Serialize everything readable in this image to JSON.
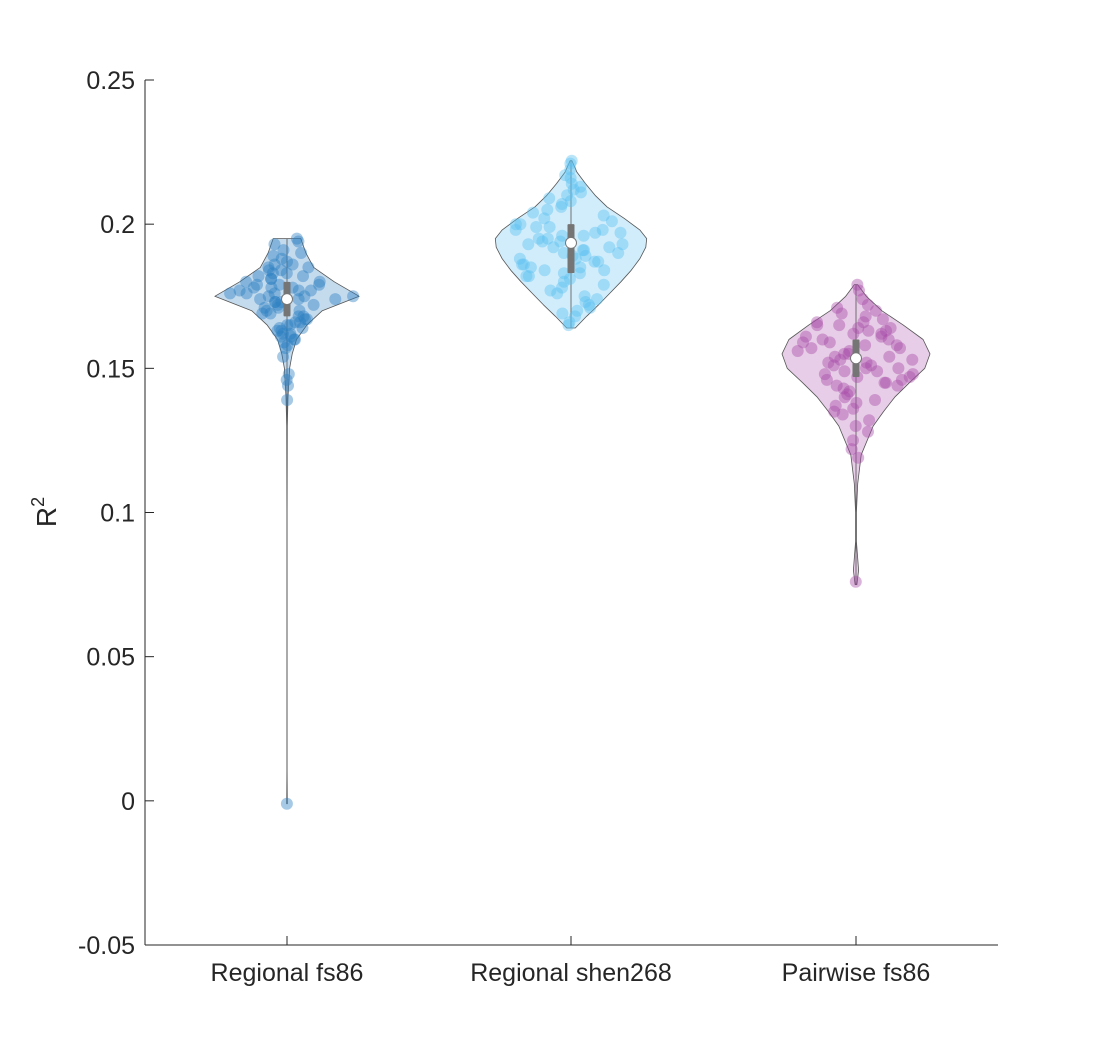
{
  "chart_data": {
    "type": "violin",
    "ylabel": "R",
    "ylabel_superscript": "2",
    "ylim": [
      -0.05,
      0.25
    ],
    "yticks": [
      {
        "value": -0.05,
        "label": "-0.05"
      },
      {
        "value": 0,
        "label": "0"
      },
      {
        "value": 0.05,
        "label": "0.05"
      },
      {
        "value": 0.1,
        "label": "0.1"
      },
      {
        "value": 0.15,
        "label": "0.15"
      },
      {
        "value": 0.2,
        "label": "0.2"
      },
      {
        "value": 0.25,
        "label": "0.25"
      }
    ],
    "categories": [
      "Regional fs86",
      "Regional shen268",
      "Pairwise fs86"
    ],
    "grid": false,
    "series": [
      {
        "category": "Regional fs86",
        "color": "#2a7fc1",
        "median": 0.174,
        "q1": 0.168,
        "q3": 0.18,
        "min": -0.001,
        "max": 0.195,
        "density": [
          [
            -0.001,
            0.004
          ],
          [
            0.01,
            0.001
          ],
          [
            0.05,
            0.001
          ],
          [
            0.1,
            0.001
          ],
          [
            0.13,
            0.004
          ],
          [
            0.14,
            0.012
          ],
          [
            0.15,
            0.03
          ],
          [
            0.155,
            0.06
          ],
          [
            0.16,
            0.11
          ],
          [
            0.165,
            0.23
          ],
          [
            0.17,
            0.41
          ],
          [
            0.175,
            0.84
          ],
          [
            0.18,
            0.55
          ],
          [
            0.185,
            0.31
          ],
          [
            0.19,
            0.22
          ],
          [
            0.195,
            0.16
          ]
        ],
        "points": [
          0.195,
          0.194,
          0.193,
          0.191,
          0.19,
          0.189,
          0.188,
          0.187,
          0.186,
          0.186,
          0.185,
          0.185,
          0.184,
          0.184,
          0.183,
          0.183,
          0.182,
          0.182,
          0.181,
          0.181,
          0.18,
          0.18,
          0.179,
          0.179,
          0.179,
          0.178,
          0.178,
          0.178,
          0.177,
          0.177,
          0.177,
          0.176,
          0.176,
          0.176,
          0.175,
          0.175,
          0.175,
          0.174,
          0.174,
          0.174,
          0.173,
          0.173,
          0.173,
          0.172,
          0.172,
          0.171,
          0.171,
          0.17,
          0.17,
          0.169,
          0.169,
          0.168,
          0.168,
          0.167,
          0.167,
          0.166,
          0.166,
          0.165,
          0.165,
          0.164,
          0.164,
          0.163,
          0.163,
          0.162,
          0.162,
          0.161,
          0.161,
          0.16,
          0.16,
          0.159,
          0.158,
          0.157,
          0.154,
          0.148,
          0.146,
          0.144,
          0.139,
          -0.001
        ]
      },
      {
        "category": "Regional shen268",
        "color": "#5bc0f0",
        "median": 0.1935,
        "q1": 0.183,
        "q3": 0.2,
        "min": 0.164,
        "max": 0.222,
        "density": [
          [
            0.164,
            0.05
          ],
          [
            0.168,
            0.18
          ],
          [
            0.172,
            0.32
          ],
          [
            0.176,
            0.45
          ],
          [
            0.18,
            0.58
          ],
          [
            0.184,
            0.7
          ],
          [
            0.188,
            0.8
          ],
          [
            0.192,
            0.87
          ],
          [
            0.195,
            0.88
          ],
          [
            0.198,
            0.8
          ],
          [
            0.202,
            0.62
          ],
          [
            0.206,
            0.42
          ],
          [
            0.21,
            0.28
          ],
          [
            0.214,
            0.17
          ],
          [
            0.218,
            0.07
          ],
          [
            0.222,
            0.01
          ]
        ],
        "points": [
          0.222,
          0.221,
          0.219,
          0.217,
          0.216,
          0.214,
          0.213,
          0.212,
          0.211,
          0.21,
          0.209,
          0.208,
          0.207,
          0.206,
          0.205,
          0.204,
          0.203,
          0.202,
          0.201,
          0.2,
          0.2,
          0.199,
          0.199,
          0.198,
          0.198,
          0.197,
          0.197,
          0.196,
          0.196,
          0.195,
          0.195,
          0.194,
          0.194,
          0.193,
          0.193,
          0.192,
          0.192,
          0.191,
          0.191,
          0.19,
          0.19,
          0.189,
          0.189,
          0.188,
          0.188,
          0.187,
          0.187,
          0.186,
          0.186,
          0.185,
          0.185,
          0.184,
          0.184,
          0.183,
          0.183,
          0.182,
          0.182,
          0.181,
          0.18,
          0.179,
          0.178,
          0.177,
          0.176,
          0.175,
          0.174,
          0.173,
          0.172,
          0.171,
          0.17,
          0.169,
          0.168,
          0.166,
          0.165
        ]
      },
      {
        "category": "Pairwise fs86",
        "color": "#a84ba8",
        "median": 0.1535,
        "q1": 0.147,
        "q3": 0.16,
        "min": 0.075,
        "max": 0.179,
        "density": [
          [
            0.075,
            0.01
          ],
          [
            0.08,
            0.03
          ],
          [
            0.09,
            0.005
          ],
          [
            0.1,
            0.005
          ],
          [
            0.11,
            0.02
          ],
          [
            0.12,
            0.06
          ],
          [
            0.13,
            0.2
          ],
          [
            0.135,
            0.32
          ],
          [
            0.14,
            0.45
          ],
          [
            0.145,
            0.62
          ],
          [
            0.15,
            0.8
          ],
          [
            0.155,
            0.86
          ],
          [
            0.16,
            0.78
          ],
          [
            0.165,
            0.55
          ],
          [
            0.17,
            0.3
          ],
          [
            0.175,
            0.12
          ],
          [
            0.179,
            0.02
          ]
        ],
        "points": [
          0.179,
          0.177,
          0.174,
          0.172,
          0.171,
          0.17,
          0.169,
          0.168,
          0.167,
          0.166,
          0.166,
          0.165,
          0.165,
          0.164,
          0.164,
          0.163,
          0.163,
          0.162,
          0.162,
          0.161,
          0.161,
          0.16,
          0.16,
          0.159,
          0.159,
          0.158,
          0.158,
          0.157,
          0.157,
          0.156,
          0.156,
          0.155,
          0.155,
          0.154,
          0.154,
          0.153,
          0.153,
          0.152,
          0.152,
          0.151,
          0.151,
          0.15,
          0.15,
          0.149,
          0.149,
          0.148,
          0.148,
          0.147,
          0.147,
          0.146,
          0.146,
          0.145,
          0.145,
          0.144,
          0.144,
          0.143,
          0.142,
          0.141,
          0.14,
          0.139,
          0.138,
          0.137,
          0.136,
          0.135,
          0.134,
          0.132,
          0.13,
          0.128,
          0.125,
          0.122,
          0.119,
          0.076
        ]
      }
    ]
  }
}
